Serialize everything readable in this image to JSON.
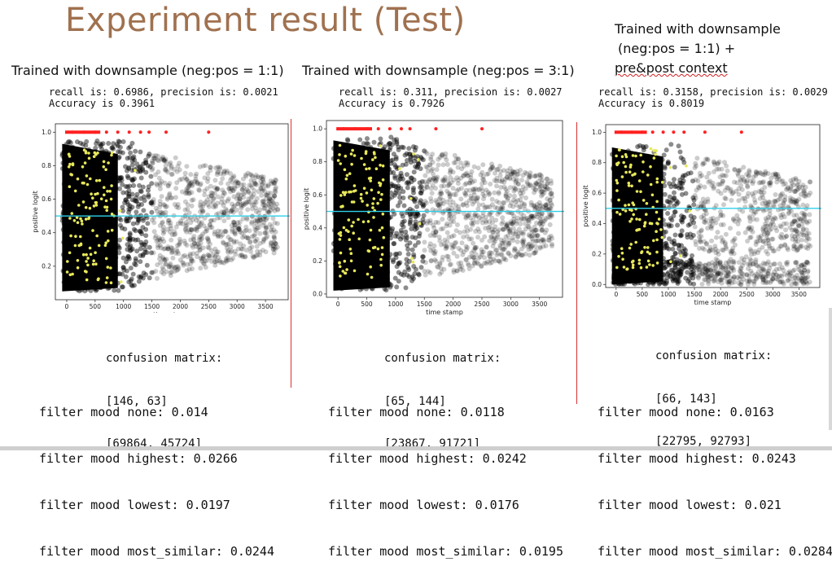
{
  "slide": {
    "title": "Experiment result (Test)"
  },
  "panels": [
    {
      "heading": "Trained with downsample (neg:pos = 1:1)",
      "stats": "recall is: 0.6986, precision is: 0.0021\nAccuracy is 0.3961",
      "confusion_label": "confusion matrix:",
      "confusion_rows": [
        "[146, 63]",
        "[69864, 45724]"
      ],
      "moods": [
        {
          "label": "filter mood none:",
          "value": "0.014"
        },
        {
          "label": "filter mood highest:",
          "value": "0.0266"
        },
        {
          "label": "filter mood lowest:",
          "value": "0.0197"
        },
        {
          "label": "filter mood most_similar:",
          "value": "0.0244"
        }
      ]
    },
    {
      "heading": "Trained with downsample (neg:pos = 3:1)",
      "stats": "recall is: 0.311, precision is: 0.0027\nAccuracy is 0.7926",
      "confusion_label": "confusion matrix:",
      "confusion_rows": [
        "[65, 144]",
        "[23867, 91721]"
      ],
      "moods": [
        {
          "label": "filter mood none:",
          "value": "0.0118"
        },
        {
          "label": "filter mood highest:",
          "value": "0.0242"
        },
        {
          "label": "filter mood lowest:",
          "value": "0.0176"
        },
        {
          "label": "filter mood most_similar:",
          "value": "0.0195"
        }
      ]
    },
    {
      "heading_lines": [
        "Trained with downsample",
        "(neg:pos = 1:1) +",
        "pre&post context"
      ],
      "stats": "recall is: 0.3158, precision is: 0.0029\nAccuracy is 0.8019",
      "confusion_label": "confusion matrix:",
      "confusion_rows": [
        "[66, 143]",
        "[22795, 92793]"
      ],
      "moods": [
        {
          "label": "filter mood none:",
          "value": "0.0163"
        },
        {
          "label": "filter mood highest:",
          "value": "0.0243"
        },
        {
          "label": "filter mood lowest:",
          "value": "0.021"
        },
        {
          "label": "filter mood most_similar:",
          "value": "0.0284"
        }
      ]
    }
  ],
  "chart_data": [
    {
      "type": "scatter",
      "title": "",
      "xlabel": "time stamp",
      "ylabel": "positive logit",
      "xlim": [
        -200,
        3900
      ],
      "ylim": [
        0.0,
        1.05
      ],
      "xticks": [
        0,
        500,
        1000,
        1500,
        2000,
        2500,
        3000,
        3500
      ],
      "yticks": [
        0.2,
        0.4,
        0.6,
        0.8,
        1.0
      ],
      "threshold": 0.5,
      "grid": false,
      "colors": {
        "negative": "#000000",
        "positive_top": "#ff2020",
        "positive": "#e8e85a",
        "threshold": "#2fd0e8"
      },
      "positive_points_at_1": [
        [
          100,
          1.0
        ],
        [
          300,
          1.0
        ],
        [
          500,
          1.0
        ],
        [
          700,
          1.0
        ],
        [
          900,
          1.0
        ],
        [
          1100,
          1.0
        ],
        [
          1300,
          1.0
        ],
        [
          1450,
          1.0
        ],
        [
          1750,
          1.0
        ],
        [
          2500,
          1.0
        ]
      ],
      "positive_x_range": [
        0,
        800
      ],
      "negative_y_range": [
        0.05,
        0.95
      ]
    },
    {
      "type": "scatter",
      "title": "",
      "xlabel": "time stamp",
      "ylabel": "positive logit",
      "xlim": [
        -200,
        3900
      ],
      "ylim": [
        -0.02,
        1.05
      ],
      "xticks": [
        0,
        500,
        1000,
        1500,
        2000,
        2500,
        3000,
        3500
      ],
      "yticks": [
        0.0,
        0.2,
        0.4,
        0.6,
        0.8,
        1.0
      ],
      "threshold": 0.5,
      "grid": false,
      "colors": {
        "negative": "#000000",
        "positive_top": "#ff2020",
        "positive": "#e8e85a",
        "threshold": "#2fd0e8"
      },
      "positive_points_at_1": [
        [
          100,
          1.0
        ],
        [
          300,
          1.0
        ],
        [
          500,
          1.0
        ],
        [
          700,
          1.0
        ],
        [
          900,
          1.0
        ],
        [
          1100,
          1.0
        ],
        [
          1250,
          1.0
        ],
        [
          1700,
          1.0
        ],
        [
          2500,
          1.0
        ]
      ],
      "positive_x_range": [
        0,
        800
      ],
      "negative_y_range": [
        0.02,
        0.95
      ]
    },
    {
      "type": "scatter",
      "title": "",
      "xlabel": "time stamp",
      "ylabel": "positive logit",
      "xlim": [
        -200,
        3900
      ],
      "ylim": [
        -0.02,
        1.05
      ],
      "xticks": [
        0,
        500,
        1000,
        1500,
        2000,
        2500,
        3000,
        3500
      ],
      "yticks": [
        0.0,
        0.2,
        0.4,
        0.6,
        0.8,
        1.0
      ],
      "threshold": 0.5,
      "grid": false,
      "colors": {
        "negative": "#000000",
        "positive_top": "#ff2020",
        "positive": "#e8e85a",
        "threshold": "#2fd0e8"
      },
      "positive_points_at_1": [
        [
          100,
          1.0
        ],
        [
          300,
          1.0
        ],
        [
          500,
          1.0
        ],
        [
          700,
          1.0
        ],
        [
          900,
          1.0
        ],
        [
          1100,
          1.0
        ],
        [
          1300,
          1.0
        ],
        [
          1700,
          1.0
        ],
        [
          2400,
          1.0
        ]
      ],
      "positive_x_range": [
        0,
        800
      ],
      "negative_y_range": [
        0.0,
        0.92
      ]
    }
  ]
}
